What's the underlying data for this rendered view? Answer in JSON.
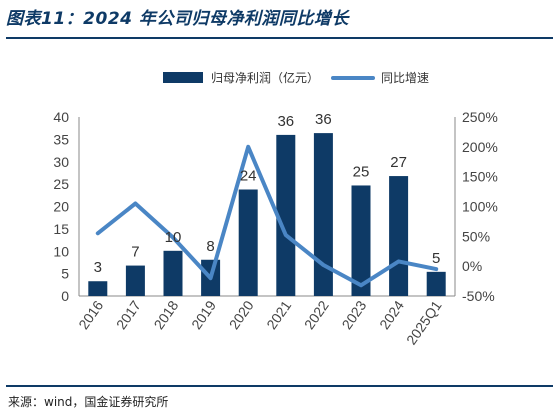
{
  "header": {
    "title": "图表11：2024 年公司归母净利润同比增长"
  },
  "footer": {
    "source": "来源：wind，国金证券研究所"
  },
  "colors": {
    "bar": "#0e3a66",
    "line": "#4a86c5",
    "rule": "#0e3a66"
  },
  "chart_data": {
    "type": "bar",
    "categories": [
      "2016",
      "2017",
      "2018",
      "2019",
      "2020",
      "2021",
      "2022",
      "2023",
      "2024",
      "2025Q1"
    ],
    "series": [
      {
        "name": "归母净利润（亿元）",
        "type": "bar",
        "axis": "left",
        "values": [
          3.3,
          6.8,
          10.1,
          8.1,
          23.8,
          36.0,
          36.4,
          24.7,
          26.8,
          5.4
        ],
        "labels": [
          "3",
          "7",
          "10",
          "8",
          "24",
          "36",
          "36",
          "25",
          "27",
          "5"
        ]
      },
      {
        "name": "同比增速",
        "type": "line",
        "axis": "right",
        "values": [
          0.55,
          1.05,
          0.48,
          -0.2,
          2.0,
          0.52,
          0.02,
          -0.32,
          0.08,
          -0.05
        ]
      }
    ],
    "y_left": {
      "ticks": [
        "0",
        "5",
        "10",
        "15",
        "20",
        "25",
        "30",
        "35",
        "40"
      ],
      "min": 0,
      "max": 40
    },
    "y_right": {
      "ticks": [
        "-50%",
        "0%",
        "50%",
        "100%",
        "150%",
        "200%",
        "250%"
      ],
      "min": -0.5,
      "max": 2.5
    },
    "grid": false,
    "legend": "top"
  }
}
